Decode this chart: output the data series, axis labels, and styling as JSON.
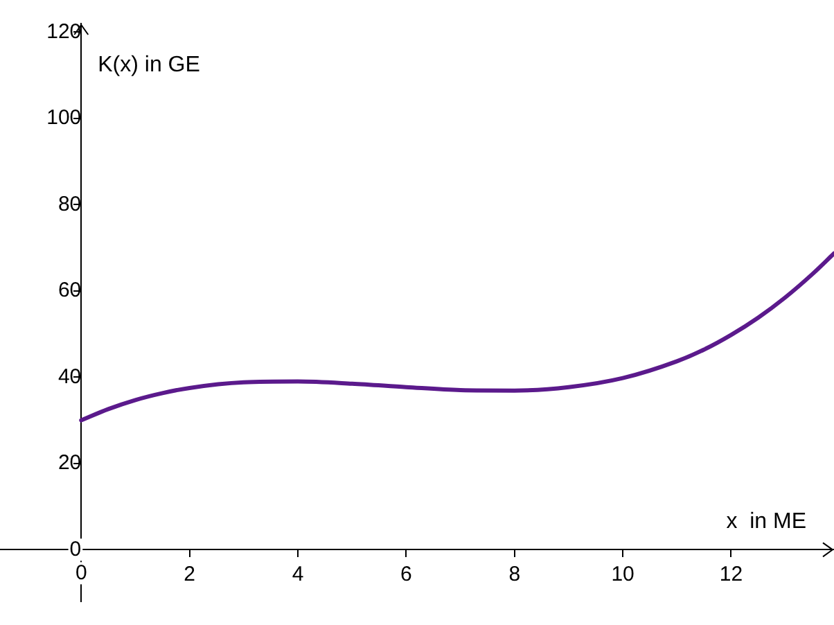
{
  "chart_data": {
    "type": "line",
    "xlabel": "x  in ME",
    "ylabel": "K(x) in GE",
    "series": [
      {
        "color": "#5b1a8c",
        "x": [
          0,
          0.5,
          1,
          1.5,
          2,
          3,
          4,
          5,
          6,
          7,
          8,
          9,
          10,
          11,
          11.5,
          12,
          12.5,
          13,
          13.5,
          13.9
        ],
        "values": [
          30,
          32.6,
          34.7,
          36.3,
          37.5,
          38.8,
          39,
          38.5,
          37.7,
          37,
          36.9,
          37.7,
          39.8,
          43.7,
          46.4,
          49.8,
          53.8,
          58.5,
          63.9,
          68.7
        ]
      }
    ],
    "xlim": [
      -1.5,
      13.9
    ],
    "ylim": [
      -12,
      122
    ],
    "xticks": [
      0,
      2,
      4,
      6,
      8,
      10,
      12
    ],
    "yticks": [
      0,
      20,
      40,
      60,
      80,
      100,
      120
    ],
    "grid": false,
    "legend": false,
    "marker": "none",
    "line_style": "solid"
  }
}
